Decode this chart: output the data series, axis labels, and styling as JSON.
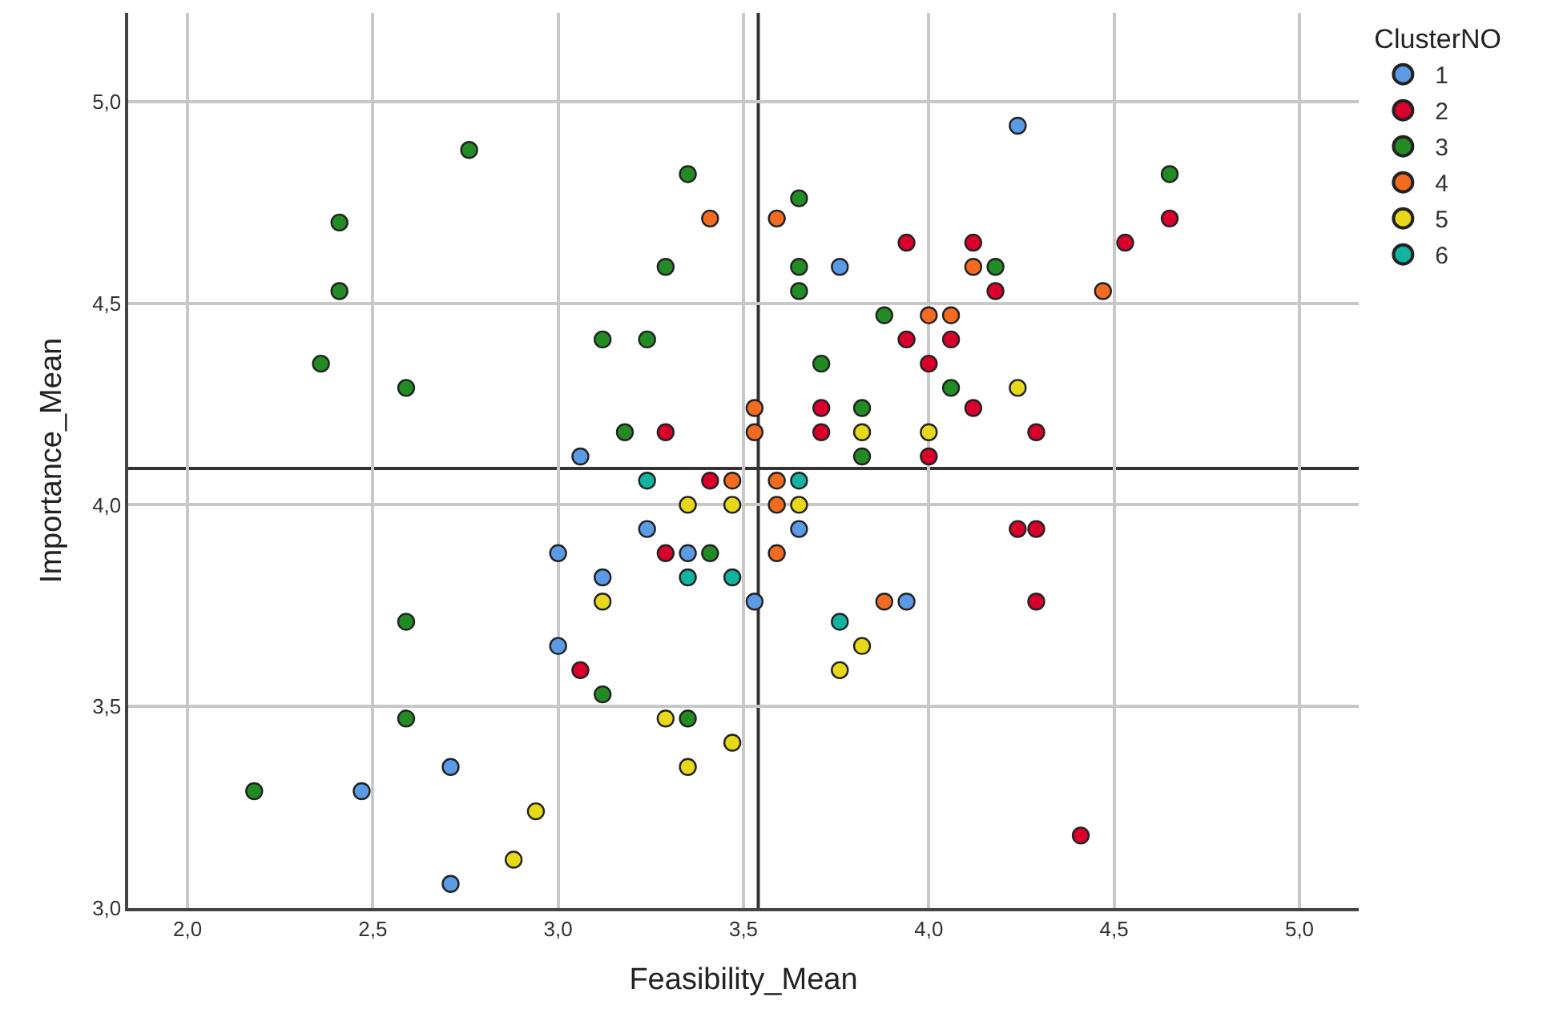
{
  "chart_data": {
    "type": "scatter",
    "xlabel": "Feasibility_Mean",
    "ylabel": "Importance_Mean",
    "legend_title": "ClusterNO",
    "legend": "right",
    "grid": true,
    "marker": "circle",
    "xlim": [
      1.84,
      5.16
    ],
    "ylim": [
      3.0,
      5.22
    ],
    "xticks": [
      {
        "value": 2,
        "label": "2,0"
      },
      {
        "value": 2.5,
        "label": "2,5"
      },
      {
        "value": 3,
        "label": "3,0"
      },
      {
        "value": 3.5,
        "label": "3,5"
      },
      {
        "value": 4,
        "label": "4,0"
      },
      {
        "value": 4.5,
        "label": "4,5"
      },
      {
        "value": 5,
        "label": "5,0"
      }
    ],
    "yticks": [
      {
        "value": 3,
        "label": "3,0"
      },
      {
        "value": 3.5,
        "label": "3,5"
      },
      {
        "value": 4,
        "label": "4,0"
      },
      {
        "value": 4.5,
        "label": "4,5"
      },
      {
        "value": 5,
        "label": "5,0"
      }
    ],
    "ref_lines": [
      {
        "axis": "x",
        "value": 3.54,
        "color": "#333333"
      },
      {
        "axis": "y",
        "value": 4.09,
        "color": "#333333"
      }
    ],
    "series": [
      {
        "name": "1",
        "color": "#5b9be6",
        "x": [
          2.47,
          2.71,
          2.71,
          3.0,
          3.0,
          3.06,
          3.12,
          3.24,
          3.35,
          3.53,
          3.65,
          3.76,
          3.94,
          4.24
        ],
        "values": [
          3.29,
          3.35,
          3.06,
          3.88,
          3.65,
          4.12,
          3.82,
          3.94,
          3.88,
          3.76,
          3.94,
          4.59,
          3.76,
          4.94
        ]
      },
      {
        "name": "2",
        "color": "#d9002b",
        "x": [
          3.06,
          3.29,
          3.29,
          3.41,
          3.71,
          3.71,
          3.94,
          3.94,
          4.0,
          4.0,
          4.06,
          4.12,
          4.12,
          4.18,
          4.24,
          4.29,
          4.29,
          4.29,
          4.41,
          4.53,
          4.65
        ],
        "values": [
          3.59,
          4.18,
          3.88,
          4.06,
          4.24,
          4.18,
          4.65,
          4.41,
          4.35,
          4.12,
          4.41,
          4.65,
          4.24,
          4.53,
          3.94,
          3.94,
          4.18,
          3.76,
          3.18,
          4.65,
          4.71
        ]
      },
      {
        "name": "3",
        "color": "#238b23",
        "x": [
          2.18,
          2.36,
          2.41,
          2.41,
          2.59,
          2.59,
          2.59,
          2.76,
          3.12,
          3.12,
          3.18,
          3.24,
          3.29,
          3.35,
          3.41,
          3.35,
          3.65,
          3.65,
          3.65,
          3.71,
          3.82,
          3.82,
          3.88,
          4.06,
          4.18,
          4.65
        ],
        "values": [
          3.29,
          4.35,
          4.7,
          4.53,
          4.29,
          3.71,
          3.47,
          4.88,
          4.41,
          3.53,
          4.18,
          4.41,
          4.59,
          4.82,
          3.88,
          3.47,
          4.76,
          4.59,
          4.53,
          4.35,
          4.24,
          4.12,
          4.47,
          4.29,
          4.59,
          4.82
        ]
      },
      {
        "name": "4",
        "color": "#f26b21",
        "x": [
          3.41,
          3.47,
          3.53,
          3.53,
          3.59,
          3.59,
          3.59,
          3.59,
          3.88,
          4.0,
          4.06,
          4.12,
          4.47
        ],
        "values": [
          4.71,
          4.06,
          4.24,
          4.18,
          4.71,
          4.06,
          4.0,
          3.88,
          3.76,
          4.47,
          4.47,
          4.59,
          4.53
        ]
      },
      {
        "name": "5",
        "color": "#e8d81a",
        "x": [
          2.88,
          2.94,
          3.12,
          3.29,
          3.35,
          3.35,
          3.47,
          3.47,
          3.65,
          3.76,
          3.82,
          3.82,
          4.0,
          4.24
        ],
        "values": [
          3.12,
          3.24,
          3.76,
          3.47,
          4.0,
          3.35,
          4.0,
          3.41,
          4.0,
          3.59,
          4.18,
          3.65,
          4.18,
          4.29
        ]
      },
      {
        "name": "6",
        "color": "#12b3a0",
        "x": [
          3.24,
          3.35,
          3.47,
          3.65,
          3.76
        ],
        "values": [
          4.06,
          3.82,
          3.82,
          4.06,
          3.71
        ]
      }
    ]
  }
}
